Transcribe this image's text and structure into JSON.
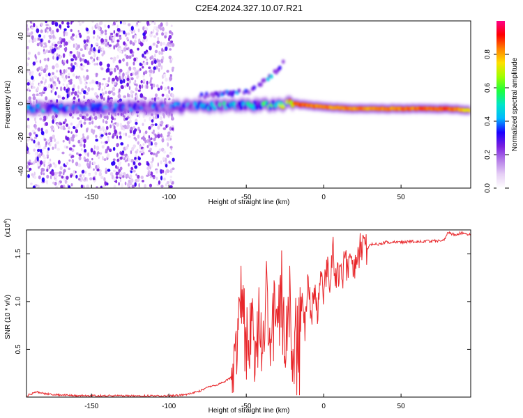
{
  "title": "C2E4.2024.327.10.07.R21",
  "chart_data": [
    {
      "type": "heatmap",
      "xlabel": "Height of straight line (km)",
      "ylabel": "Frequency (Hz)",
      "xlim": [
        -192,
        95
      ],
      "ylim": [
        -50,
        49
      ],
      "xticks": [
        -150,
        -100,
        -50,
        0,
        50
      ],
      "yticks": [
        -40,
        -20,
        0,
        20,
        40
      ],
      "grid": false,
      "colorbar": {
        "label": "Normalized spectral amplitude",
        "range": [
          0,
          1
        ],
        "ticks": [
          0.0,
          0.2,
          0.4,
          0.6,
          0.8
        ],
        "colormap": "rainbow",
        "colors": [
          "#ffffff",
          "#e6cff5",
          "#b57de8",
          "#7a1fe0",
          "#1a00ff",
          "#00b8ff",
          "#00e6c8",
          "#1eff3c",
          "#a0ff00",
          "#ffe000",
          "#ff8000",
          "#ff0000",
          "#ff0088"
        ]
      },
      "features": {
        "carrier_line": {
          "description_values": "narrow band near -3 Hz across full height range",
          "x": [
            -192,
            -150,
            -100,
            -80,
            -60,
            -40,
            -30,
            -20,
            0,
            20,
            50,
            80,
            95
          ],
          "freq": [
            -3,
            -2.5,
            -2,
            -1.5,
            -1,
            -1,
            -0.5,
            0,
            -2,
            -3,
            -3,
            -3,
            -4
          ],
          "amplitude": [
            0.35,
            0.3,
            0.3,
            0.35,
            0.4,
            0.45,
            0.5,
            0.9,
            0.85,
            0.85,
            0.85,
            0.9,
            0.75
          ]
        },
        "upper_branch": {
          "x": [
            -80,
            -70,
            -60,
            -50,
            -45,
            -40,
            -35,
            -30,
            -25
          ],
          "freq": [
            5,
            5,
            6,
            7,
            9,
            12,
            16,
            20,
            25
          ],
          "amplitude": [
            0.25,
            0.3,
            0.3,
            0.3,
            0.25,
            0.3,
            0.35,
            0.3,
            0.3
          ]
        },
        "noise_region": {
          "x_range": [
            -192,
            -97
          ],
          "freq_range": [
            -50,
            49
          ]
        }
      }
    },
    {
      "type": "line",
      "xlabel": "Height of straight line (km)",
      "ylabel": "SNR (10 * v/v)",
      "y_scale_label": "(x10",
      "y_scale_exponent": "4",
      "xlim": [
        -192,
        95
      ],
      "ylim": [
        0,
        1.75
      ],
      "xticks": [
        -150,
        -100,
        -50,
        0,
        50
      ],
      "yticks": [
        0.5,
        1.0,
        1.5
      ],
      "ytick_labels": [
        "0.5",
        "1.0",
        "1.5"
      ],
      "color": "#e8262a",
      "grid": false,
      "x": [
        -192,
        -185,
        -180,
        -170,
        -160,
        -150,
        -140,
        -130,
        -120,
        -110,
        -100,
        -90,
        -85,
        -80,
        -75,
        -70,
        -65,
        -60,
        -57,
        -55,
        -53,
        -50,
        -47,
        -45,
        -42,
        -40,
        -37,
        -35,
        -32,
        -30,
        -27,
        -25,
        -22,
        -20,
        -18,
        -16,
        -14,
        -12,
        -10,
        -8,
        -6,
        -4,
        -2,
        0,
        2,
        4,
        6,
        8,
        10,
        12,
        14,
        16,
        18,
        20,
        22,
        25,
        28,
        30,
        35,
        40,
        50,
        60,
        70,
        75,
        78,
        80,
        85,
        90,
        95
      ],
      "y": [
        0.01,
        0.05,
        0.03,
        0.02,
        0.01,
        0.01,
        0.01,
        0.01,
        0.01,
        0.01,
        0.01,
        0.02,
        0.04,
        0.06,
        0.1,
        0.12,
        0.15,
        0.2,
        0.35,
        0.6,
        0.95,
        0.55,
        0.85,
        0.4,
        0.8,
        0.45,
        0.9,
        0.5,
        0.95,
        0.55,
        1.05,
        0.4,
        0.9,
        0.3,
        0.7,
        0.65,
        1.0,
        0.7,
        1.2,
        0.85,
        1.1,
        0.9,
        1.25,
        1.0,
        1.4,
        1.1,
        1.6,
        1.15,
        1.35,
        1.25,
        1.45,
        1.3,
        1.4,
        1.35,
        1.5,
        1.58,
        1.55,
        1.6,
        1.6,
        1.62,
        1.62,
        1.63,
        1.63,
        1.64,
        1.65,
        1.72,
        1.7,
        1.72,
        1.7
      ]
    }
  ]
}
